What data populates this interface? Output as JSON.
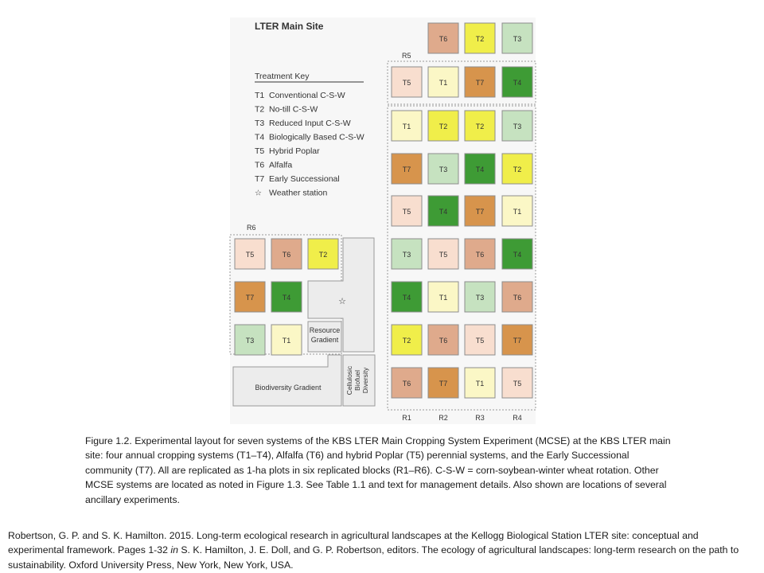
{
  "title": "LTER Main Site",
  "colors": {
    "T1": "#fbf7c6",
    "T2": "#f0ee4a",
    "T3": "#c6e2c0",
    "T4": "#3e9b35",
    "T5": "#f8decf",
    "T6": "#dfaa8c",
    "T7": "#d7944c",
    "gray_area": "#ececec",
    "border": "#9a9a9a"
  },
  "key": {
    "heading": "Treatment Key",
    "items": [
      {
        "code": "T1",
        "label": "Conventional C-S-W"
      },
      {
        "code": "T2",
        "label": "No-till C-S-W"
      },
      {
        "code": "T3",
        "label": "Reduced Input C-S-W"
      },
      {
        "code": "T4",
        "label": "Biologically Based C-S-W"
      },
      {
        "code": "T5",
        "label": "Hybrid Poplar"
      },
      {
        "code": "T6",
        "label": "Alfalfa"
      },
      {
        "code": "T7",
        "label": "Early Successional"
      },
      {
        "code": "star-icon",
        "label": "Weather station"
      }
    ]
  },
  "blocks": {
    "R5_label": "R5",
    "R6_label": "R6",
    "column_labels": [
      "R1",
      "R2",
      "R3",
      "R4"
    ],
    "R5_rows": [
      [
        "",
        "T6",
        "T2",
        "T3"
      ],
      [
        "T5",
        "T1",
        "T7",
        "T4"
      ]
    ],
    "main_rows": [
      [
        "T1",
        "T2",
        "T2",
        "T3"
      ],
      [
        "T7",
        "T3",
        "T4",
        "T2"
      ],
      [
        "T5",
        "T4",
        "T7",
        "T1"
      ],
      [
        "T3",
        "T5",
        "T6",
        "T4"
      ],
      [
        "T4",
        "T1",
        "T3",
        "T6"
      ],
      [
        "T2",
        "T6",
        "T5",
        "T7"
      ],
      [
        "T6",
        "T7",
        "T1",
        "T5"
      ]
    ],
    "R6_rows": [
      [
        "T5",
        "T6",
        "T2"
      ],
      [
        "T7",
        "T4"
      ],
      [
        "T3",
        "T1"
      ]
    ]
  },
  "ancillary": {
    "resource_gradient": [
      "Resource",
      "Gradient"
    ],
    "biodiversity_gradient": "Biodiversity Gradient",
    "cellulosic": [
      "Cellulosic",
      "Biofuel",
      "Diversity"
    ]
  },
  "caption": "Figure 1.2. Experimental layout for seven systems of the KBS LTER Main Cropping System Experiment (MCSE) at the KBS LTER main site: four annual cropping systems (T1–T4), Alfalfa (T6) and hybrid Poplar (T5) perennial systems, and the Early Successional community (T7). All are replicated as 1-ha plots in six replicated blocks (R1–R6). C-S-W = corn-soybean-winter wheat rotation. Other MCSE systems are located as noted in Figure 1.3. See Table 1.1 and text for management details. Also shown are locations of several ancillary experiments.",
  "citation": {
    "part1": "Robertson, G. P. and S. K. Hamilton. 2015. Long-term ecological research in agricultural landscapes at the Kellogg Biological Station LTER site: conceptual and experimental framework. Pages 1-32 ",
    "in": "in",
    "part2": " S. K. Hamilton, J. E. Doll, and G. P. Robertson, editors. The ecology of agricultural landscapes: long-term research on the path to sustainability. Oxford University Press, New York, New York, USA."
  }
}
